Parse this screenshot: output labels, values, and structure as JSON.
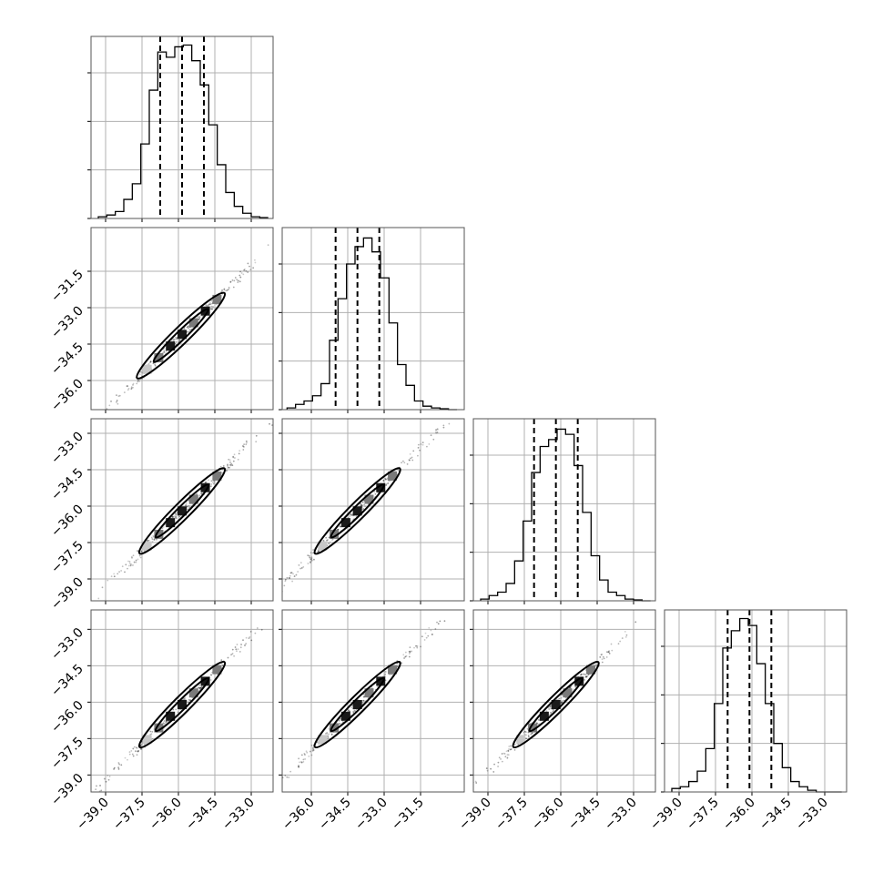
{
  "chart_data": {
    "type": "corner",
    "n_params": 4,
    "params": [
      {
        "index": 0,
        "xlim": [
          -39.6,
          -32.1
        ],
        "ticks": [
          -39.0,
          -37.5,
          -36.0,
          -34.5,
          -33.0
        ],
        "tick_labels": [
          "−39.0",
          "−37.5",
          "−36.0",
          "−34.5",
          "−33.0"
        ],
        "quantiles": [
          -36.75,
          -35.85,
          -34.95
        ]
      },
      {
        "index": 1,
        "xlim": [
          -37.2,
          -29.7
        ],
        "ticks": [
          -36.0,
          -34.5,
          -33.0,
          -31.5
        ],
        "tick_labels": [
          "−36.0",
          "−34.5",
          "−33.0",
          "−31.5"
        ],
        "quantiles": [
          -35.0,
          -34.1,
          -33.2
        ]
      },
      {
        "index": 2,
        "xlim": [
          -39.6,
          -32.1
        ],
        "ticks": [
          -39.0,
          -37.5,
          -36.0,
          -34.5,
          -33.0
        ],
        "tick_labels": [
          "−39.0",
          "−37.5",
          "−36.0",
          "−34.5",
          "−33.0"
        ],
        "quantiles": [
          -37.1,
          -36.2,
          -35.3
        ]
      },
      {
        "index": 3,
        "xlim": [
          -39.6,
          -32.1
        ],
        "ticks": [
          -39.0,
          -37.5,
          -36.0,
          -34.5,
          -33.0
        ],
        "tick_labels": [
          "−39.0",
          "−37.5",
          "−36.0",
          "−34.5",
          "−33.0"
        ],
        "quantiles": [
          -37.0,
          -36.1,
          -35.2
        ]
      }
    ],
    "histograms": [
      {
        "param": 0,
        "edges": [
          -39.3,
          -38.95,
          -38.6,
          -38.25,
          -37.9,
          -37.55,
          -37.2,
          -36.85,
          -36.5,
          -36.15,
          -35.8,
          -35.45,
          -35.1,
          -34.75,
          -34.4,
          -34.05,
          -33.7,
          -33.35,
          -33.0,
          -32.65,
          -32.3
        ],
        "counts": [
          0.01,
          0.02,
          0.04,
          0.11,
          0.2,
          0.43,
          0.74,
          0.96,
          0.93,
          0.99,
          1.0,
          0.91,
          0.77,
          0.54,
          0.31,
          0.15,
          0.07,
          0.03,
          0.01,
          0.005
        ]
      },
      {
        "param": 1,
        "edges": [
          -37.0,
          -36.65,
          -36.3,
          -35.95,
          -35.6,
          -35.25,
          -34.9,
          -34.55,
          -34.2,
          -33.85,
          -33.5,
          -33.15,
          -32.8,
          -32.45,
          -32.1,
          -31.75,
          -31.4,
          -31.05,
          -30.7,
          -30.35,
          -30.0
        ],
        "counts": [
          0.01,
          0.03,
          0.05,
          0.08,
          0.15,
          0.4,
          0.64,
          0.84,
          0.94,
          0.99,
          0.91,
          0.76,
          0.5,
          0.26,
          0.14,
          0.05,
          0.02,
          0.01,
          0.005,
          0.0
        ]
      },
      {
        "param": 2,
        "edges": [
          -39.3,
          -38.95,
          -38.6,
          -38.25,
          -37.9,
          -37.55,
          -37.2,
          -36.85,
          -36.5,
          -36.15,
          -35.8,
          -35.45,
          -35.1,
          -34.75,
          -34.4,
          -34.05,
          -33.7,
          -33.35,
          -33.0,
          -32.65,
          -32.3
        ],
        "counts": [
          0.01,
          0.03,
          0.05,
          0.1,
          0.23,
          0.46,
          0.74,
          0.89,
          0.93,
          0.99,
          0.96,
          0.78,
          0.51,
          0.26,
          0.12,
          0.05,
          0.03,
          0.01,
          0.005,
          0.0
        ]
      },
      {
        "param": 3,
        "edges": [
          -39.3,
          -38.95,
          -38.6,
          -38.25,
          -37.9,
          -37.55,
          -37.2,
          -36.85,
          -36.5,
          -36.15,
          -35.8,
          -35.45,
          -35.1,
          -34.75,
          -34.4,
          -34.05,
          -33.7,
          -33.35,
          -33.0,
          -32.65,
          -32.3
        ],
        "counts": [
          0.02,
          0.03,
          0.06,
          0.12,
          0.25,
          0.51,
          0.83,
          0.93,
          1.0,
          0.96,
          0.74,
          0.51,
          0.28,
          0.14,
          0.06,
          0.03,
          0.01,
          0.0,
          0.0,
          0.0
        ]
      }
    ],
    "pair_panels": [
      {
        "row": 1,
        "col": 0,
        "x_param": 0,
        "y_param": 1,
        "center": [
          -35.85,
          -34.1
        ],
        "spread": 1.6,
        "contour_from": [
          -37.7,
          -35.9
        ],
        "contour_to": [
          -34.1,
          -32.4
        ]
      },
      {
        "row": 2,
        "col": 0,
        "x_param": 0,
        "y_param": 2,
        "center": [
          -35.85,
          -36.2
        ],
        "spread": 1.6,
        "contour_from": [
          -37.6,
          -37.95
        ],
        "contour_to": [
          -34.1,
          -34.45
        ]
      },
      {
        "row": 2,
        "col": 1,
        "x_param": 1,
        "y_param": 2,
        "center": [
          -34.1,
          -36.2
        ],
        "spread": 1.6,
        "contour_from": [
          -35.85,
          -37.95
        ],
        "contour_to": [
          -32.35,
          -34.45
        ]
      },
      {
        "row": 3,
        "col": 0,
        "x_param": 0,
        "y_param": 3,
        "center": [
          -35.85,
          -36.1
        ],
        "spread": 1.6,
        "contour_from": [
          -37.6,
          -37.85
        ],
        "contour_to": [
          -34.1,
          -34.35
        ]
      },
      {
        "row": 3,
        "col": 1,
        "x_param": 1,
        "y_param": 3,
        "center": [
          -34.1,
          -36.1
        ],
        "spread": 1.6,
        "contour_from": [
          -35.85,
          -37.85
        ],
        "contour_to": [
          -32.35,
          -34.35
        ]
      },
      {
        "row": 3,
        "col": 2,
        "x_param": 2,
        "y_param": 3,
        "center": [
          -36.2,
          -36.1
        ],
        "spread": 1.6,
        "contour_from": [
          -37.95,
          -37.85
        ],
        "contour_to": [
          -34.45,
          -34.35
        ]
      }
    ],
    "grid": true,
    "colors": {
      "line": "#000000",
      "grid": "#b0b0b0",
      "frame": "#555555",
      "cell_dark": "#1a1a1a",
      "cell_mid": "#7a7a7a",
      "cell_light": "#c8c8c8"
    }
  }
}
